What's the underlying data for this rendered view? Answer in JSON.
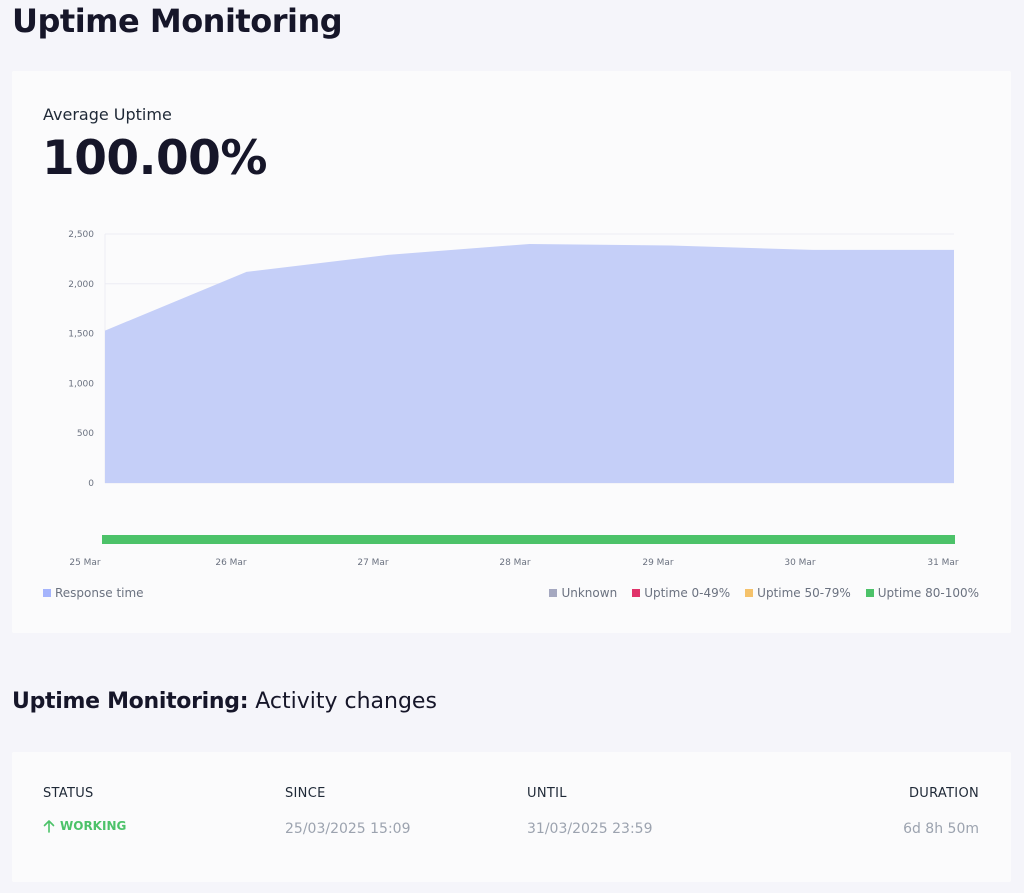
{
  "page": {
    "title": "Uptime Monitoring"
  },
  "summary": {
    "label": "Average Uptime",
    "value": "100.00%"
  },
  "chart_data": {
    "type": "area",
    "x": [
      "25 Mar",
      "26 Mar",
      "27 Mar",
      "28 Mar",
      "29 Mar",
      "30 Mar",
      "31 Mar"
    ],
    "series": [
      {
        "name": "Response time",
        "values": [
          1530,
          2120,
          2290,
          2400,
          2385,
          2340,
          2340
        ]
      }
    ],
    "yticks": [
      "2,500",
      "2,000",
      "1,500",
      "1,000",
      "500",
      "0"
    ],
    "ylim": [
      0,
      2500
    ],
    "grid": true,
    "uptime_bar": {
      "status": "Uptime 80-100%"
    },
    "legend_left": [
      {
        "label": "Response time",
        "color": "#a5b4fc"
      }
    ],
    "legend_right": [
      {
        "label": "Unknown",
        "color": "#a5a8c0"
      },
      {
        "label": "Uptime 0-49%",
        "color": "#e0336a"
      },
      {
        "label": "Uptime 50-79%",
        "color": "#f5c26b"
      },
      {
        "label": "Uptime 80-100%",
        "color": "#4cc269"
      }
    ]
  },
  "activity": {
    "title_strong": "Uptime Monitoring:",
    "title_light": " Activity changes",
    "headers": {
      "status": "STATUS",
      "since": "SINCE",
      "until": "UNTIL",
      "duration": "DURATION"
    },
    "rows": [
      {
        "status": "WORKING",
        "since": "25/03/2025 15:09",
        "until": "31/03/2025 23:59",
        "duration": "6d 8h 50m"
      }
    ]
  },
  "colors": {
    "area_fill": "#c5cff8",
    "uptime_green": "#4cc269",
    "working_green": "#4cc269"
  }
}
